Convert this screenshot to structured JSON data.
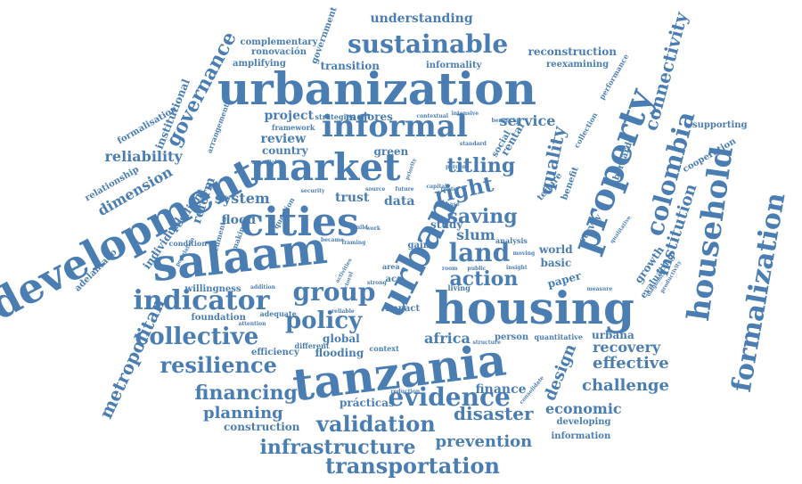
{
  "colors": {
    "word": "#4a7eb3",
    "background": "#ffffff"
  },
  "words": [
    {
      "text": "urbanization"
    },
    {
      "text": "development"
    },
    {
      "text": "tanzania"
    },
    {
      "text": "salaam"
    },
    {
      "text": "housing"
    },
    {
      "text": "urban"
    },
    {
      "text": "cities"
    },
    {
      "text": "market"
    },
    {
      "text": "property"
    },
    {
      "text": "household"
    },
    {
      "text": "formalization"
    },
    {
      "text": "informal"
    },
    {
      "text": "sustainable"
    },
    {
      "text": "colombia"
    },
    {
      "text": "indicator"
    },
    {
      "text": "group"
    },
    {
      "text": "evidence"
    },
    {
      "text": "collective"
    },
    {
      "text": "resilience"
    },
    {
      "text": "policy"
    },
    {
      "text": "validation"
    },
    {
      "text": "transportation"
    },
    {
      "text": "infrastructure"
    },
    {
      "text": "land"
    },
    {
      "text": "saving"
    },
    {
      "text": "titling"
    },
    {
      "text": "right"
    },
    {
      "text": "action"
    },
    {
      "text": "metropolitan"
    },
    {
      "text": "governance"
    },
    {
      "text": "connectivity"
    },
    {
      "text": "quality"
    },
    {
      "text": "financing"
    },
    {
      "text": "planning"
    },
    {
      "text": "prevention"
    },
    {
      "text": "disaster"
    },
    {
      "text": "effective"
    },
    {
      "text": "challenge"
    },
    {
      "text": "design"
    },
    {
      "text": "institution"
    },
    {
      "text": "reliability"
    },
    {
      "text": "dimension"
    },
    {
      "text": "system"
    },
    {
      "text": "africa"
    },
    {
      "text": "economic"
    },
    {
      "text": "recovery"
    },
    {
      "text": "finance"
    },
    {
      "text": "service"
    },
    {
      "text": "project"
    },
    {
      "text": "understanding"
    },
    {
      "text": "reconstruction"
    },
    {
      "text": "transition"
    },
    {
      "text": "institutional"
    },
    {
      "text": "reform"
    },
    {
      "text": "slum"
    },
    {
      "text": "flood"
    },
    {
      "text": "trust"
    },
    {
      "text": "data"
    },
    {
      "text": "review"
    },
    {
      "text": "country"
    },
    {
      "text": "complementary"
    },
    {
      "text": "ronovación"
    },
    {
      "text": "government"
    },
    {
      "text": "amplifying"
    },
    {
      "text": "informality"
    },
    {
      "text": "reexamining"
    },
    {
      "text": "performance"
    },
    {
      "text": "supporting"
    },
    {
      "text": "relationship"
    },
    {
      "text": "formalisation"
    },
    {
      "text": "arrangement"
    },
    {
      "text": "resilient"
    },
    {
      "text": "individual"
    },
    {
      "text": "adelantado"
    },
    {
      "text": "foundation"
    },
    {
      "text": "willingness"
    },
    {
      "text": "efficiency"
    },
    {
      "text": "construction"
    },
    {
      "text": "prácticas"
    },
    {
      "text": "developing"
    },
    {
      "text": "information"
    },
    {
      "text": "urbana"
    },
    {
      "text": "world"
    },
    {
      "text": "basic"
    },
    {
      "text": "paper"
    },
    {
      "text": "bernardo"
    },
    {
      "text": "cooperation"
    },
    {
      "text": "global"
    },
    {
      "text": "flooding"
    },
    {
      "text": "person"
    },
    {
      "text": "impact"
    },
    {
      "text": "mejores"
    },
    {
      "text": "green"
    },
    {
      "text": "rental"
    },
    {
      "text": "social"
    },
    {
      "text": "study"
    },
    {
      "text": "acc"
    },
    {
      "text": "strategies"
    },
    {
      "text": "framework"
    },
    {
      "text": "gain"
    },
    {
      "text": "growth"
    },
    {
      "text": "survey"
    },
    {
      "text": "evaluating"
    },
    {
      "text": "collection"
    },
    {
      "text": "benefit"
    },
    {
      "text": "tenure"
    },
    {
      "text": "quantitative"
    },
    {
      "text": "question"
    },
    {
      "text": "adequate"
    },
    {
      "text": "context"
    },
    {
      "text": "different"
    },
    {
      "text": "mundial"
    },
    {
      "text": "documento"
    },
    {
      "text": "condition"
    },
    {
      "text": "making"
    },
    {
      "text": "population"
    },
    {
      "text": "addition"
    },
    {
      "text": "attention"
    },
    {
      "text": "reduction"
    },
    {
      "text": "consolidate"
    },
    {
      "text": "measure"
    },
    {
      "text": "productivity"
    },
    {
      "text": "diagnostic"
    },
    {
      "text": "qualitative"
    },
    {
      "text": "analysis"
    },
    {
      "text": "moving"
    },
    {
      "text": "living"
    },
    {
      "text": "structure"
    },
    {
      "text": "source"
    },
    {
      "text": "future"
    },
    {
      "text": "capital"
    },
    {
      "text": "renter"
    },
    {
      "text": "phase"
    },
    {
      "text": "security"
    },
    {
      "text": "contextual"
    },
    {
      "text": "intensive"
    },
    {
      "text": "beneficial"
    },
    {
      "text": "standard"
    },
    {
      "text": "percent"
    },
    {
      "text": "area"
    },
    {
      "text": "reliable"
    },
    {
      "text": "strong"
    },
    {
      "text": "sectoral"
    },
    {
      "text": "activities"
    },
    {
      "text": "build"
    },
    {
      "text": "work"
    },
    {
      "text": "room"
    },
    {
      "text": "public"
    },
    {
      "text": "insight"
    },
    {
      "text": "became"
    },
    {
      "text": "framing"
    },
    {
      "text": "priority"
    }
  ]
}
